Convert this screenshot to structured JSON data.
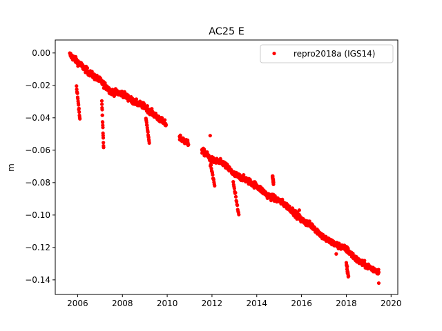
{
  "chart_data": {
    "type": "scatter",
    "title": "AC25 E",
    "xlabel": "",
    "ylabel": "m",
    "xlim": [
      2005.0,
      2020.3
    ],
    "ylim": [
      -0.149,
      0.008
    ],
    "x_ticks": [
      2006,
      2008,
      2010,
      2012,
      2014,
      2016,
      2018,
      2020
    ],
    "x_tick_labels": [
      "2006",
      "2008",
      "2010",
      "2012",
      "2014",
      "2016",
      "2018",
      "2020"
    ],
    "y_ticks": [
      0.0,
      -0.02,
      -0.04,
      -0.06,
      -0.08,
      -0.1,
      -0.12,
      -0.14
    ],
    "y_tick_labels": [
      "0.00",
      "−0.02",
      "−0.04",
      "−0.06",
      "−0.08",
      "−0.10",
      "−0.12",
      "−0.14"
    ],
    "grid": false,
    "legend_position": "top-right",
    "series": [
      {
        "name": "repro2018a (IGS14)",
        "color": "#ff0000",
        "marker": "circle",
        "segments": [
          {
            "t0": 2005.65,
            "t1": 2009.95,
            "trend": [
              [
                2005.65,
                -0.001
              ],
              [
                2006.5,
                -0.012
              ],
              [
                2007.0,
                -0.017
              ],
              [
                2007.5,
                -0.024
              ],
              [
                2008.0,
                -0.025
              ],
              [
                2008.5,
                -0.03
              ],
              [
                2009.0,
                -0.033
              ],
              [
                2009.5,
                -0.039
              ],
              [
                2009.95,
                -0.044
              ]
            ]
          },
          {
            "t0": 2010.55,
            "t1": 2010.95,
            "trend": [
              [
                2010.55,
                -0.052
              ],
              [
                2010.95,
                -0.056
              ]
            ]
          },
          {
            "t0": 2011.55,
            "t1": 2019.45,
            "trend": [
              [
                2011.55,
                -0.06
              ],
              [
                2012.0,
                -0.066
              ],
              [
                2012.5,
                -0.068
              ],
              [
                2013.0,
                -0.075
              ],
              [
                2013.5,
                -0.078
              ],
              [
                2014.0,
                -0.082
              ],
              [
                2014.5,
                -0.088
              ],
              [
                2015.0,
                -0.091
              ],
              [
                2015.5,
                -0.096
              ],
              [
                2016.0,
                -0.103
              ],
              [
                2016.5,
                -0.107
              ],
              [
                2017.0,
                -0.114
              ],
              [
                2017.5,
                -0.118
              ],
              [
                2018.0,
                -0.121
              ],
              [
                2018.5,
                -0.128
              ],
              [
                2019.0,
                -0.132
              ],
              [
                2019.45,
                -0.135
              ]
            ]
          }
        ],
        "excursions": [
          {
            "x": [
              2005.95,
              2006.1
            ],
            "y": [
              -0.02,
              -0.041
            ]
          },
          {
            "x": [
              2007.08,
              2007.16
            ],
            "y": [
              -0.03,
              -0.058
            ]
          },
          {
            "x": [
              2009.05,
              2009.2
            ],
            "y": [
              -0.04,
              -0.056
            ]
          },
          {
            "x": [
              2011.9,
              2012.12
            ],
            "y": [
              -0.066,
              -0.082
            ]
          },
          {
            "x": [
              2012.95,
              2013.2
            ],
            "y": [
              -0.08,
              -0.1
            ]
          },
          {
            "x": [
              2014.7,
              2014.75
            ],
            "y": [
              -0.076,
              -0.08
            ]
          },
          {
            "x": [
              2018.0,
              2018.1
            ],
            "y": [
              -0.13,
              -0.138
            ]
          }
        ],
        "outliers": [
          {
            "x": 2011.92,
            "y": -0.051
          },
          {
            "x": 2019.45,
            "y": -0.142
          },
          {
            "x": 2015.9,
            "y": -0.097
          },
          {
            "x": 2017.55,
            "y": -0.124
          }
        ]
      }
    ]
  }
}
